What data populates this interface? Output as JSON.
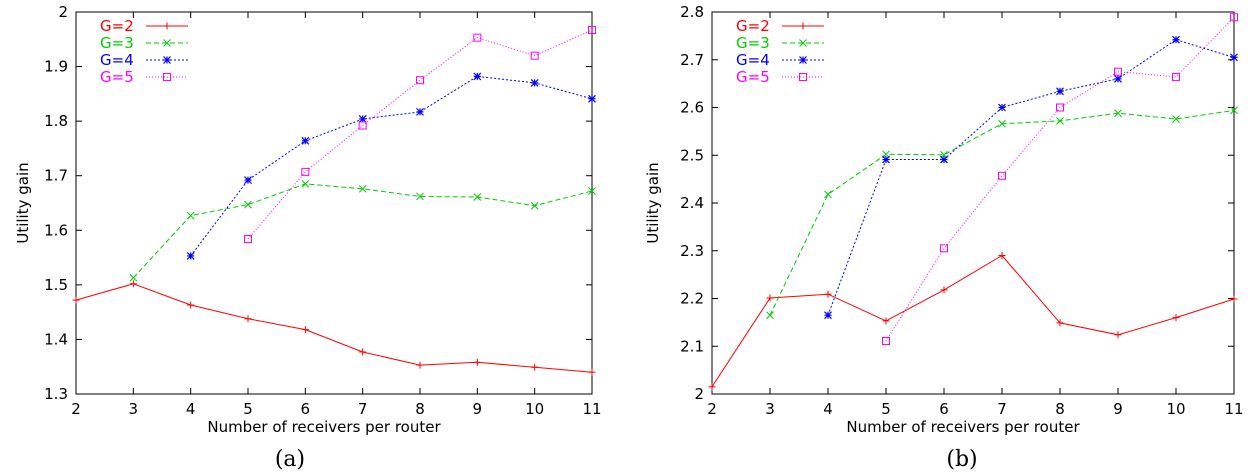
{
  "chart_data": [
    {
      "type": "line",
      "caption": "(a)",
      "xlabel": "Number of receivers per router",
      "ylabel": "Utility gain",
      "xlim": [
        2,
        11
      ],
      "ylim": [
        1.3,
        2.0
      ],
      "xticks": [
        2,
        3,
        4,
        5,
        6,
        7,
        8,
        9,
        10,
        11
      ],
      "yticks": [
        "1.3",
        "1.4",
        "1.5",
        "1.6",
        "1.7",
        "1.8",
        "1.9",
        "2"
      ],
      "grid": false,
      "legend_position": "top-left",
      "series": [
        {
          "name": "G=2",
          "color": "#ff0000",
          "marker": "plus",
          "x": [
            2,
            3,
            4,
            5,
            6,
            7,
            8,
            9,
            10,
            11
          ],
          "y": [
            1.472,
            1.502,
            1.463,
            1.438,
            1.418,
            1.377,
            1.353,
            1.358,
            1.349,
            1.34
          ]
        },
        {
          "name": "G=3",
          "color": "#00cc00",
          "marker": "cross",
          "x": [
            3,
            4,
            5,
            6,
            7,
            8,
            9,
            10,
            11
          ],
          "y": [
            1.513,
            1.627,
            1.647,
            1.685,
            1.676,
            1.662,
            1.661,
            1.645,
            1.672
          ]
        },
        {
          "name": "G=4",
          "color": "#0000ff",
          "marker": "star",
          "x": [
            4,
            5,
            6,
            7,
            8,
            9,
            10,
            11
          ],
          "y": [
            1.553,
            1.692,
            1.764,
            1.804,
            1.817,
            1.882,
            1.87,
            1.841
          ]
        },
        {
          "name": "G=5",
          "color": "#ff00ff",
          "marker": "square",
          "x": [
            5,
            6,
            7,
            8,
            9,
            10,
            11
          ],
          "y": [
            1.584,
            1.707,
            1.792,
            1.875,
            1.953,
            1.92,
            1.967
          ]
        }
      ]
    },
    {
      "type": "line",
      "caption": "(b)",
      "xlabel": "Number of receivers per router",
      "ylabel": "Utility gain",
      "xlim": [
        2,
        11
      ],
      "ylim": [
        2.0,
        2.8
      ],
      "xticks": [
        2,
        3,
        4,
        5,
        6,
        7,
        8,
        9,
        10,
        11
      ],
      "yticks": [
        "2",
        "2.1",
        "2.2",
        "2.3",
        "2.4",
        "2.5",
        "2.6",
        "2.7",
        "2.8"
      ],
      "grid": false,
      "legend_position": "top-left",
      "series": [
        {
          "name": "G=2",
          "color": "#ff0000",
          "marker": "plus",
          "x": [
            2,
            3,
            4,
            5,
            6,
            7,
            8,
            9,
            10,
            11
          ],
          "y": [
            2.015,
            2.201,
            2.209,
            2.153,
            2.218,
            2.29,
            2.149,
            2.124,
            2.16,
            2.199
          ]
        },
        {
          "name": "G=3",
          "color": "#00cc00",
          "marker": "cross",
          "x": [
            3,
            4,
            5,
            6,
            7,
            8,
            9,
            10,
            11
          ],
          "y": [
            2.165,
            2.418,
            2.502,
            2.501,
            2.566,
            2.572,
            2.588,
            2.576,
            2.594
          ]
        },
        {
          "name": "G=4",
          "color": "#0000ff",
          "marker": "star",
          "x": [
            4,
            5,
            6,
            7,
            8,
            9,
            10,
            11
          ],
          "y": [
            2.165,
            2.491,
            2.491,
            2.6,
            2.634,
            2.66,
            2.742,
            2.705
          ]
        },
        {
          "name": "G=5",
          "color": "#ff00ff",
          "marker": "square",
          "x": [
            5,
            6,
            7,
            8,
            9,
            10,
            11
          ],
          "y": [
            2.111,
            2.305,
            2.457,
            2.6,
            2.675,
            2.664,
            2.789
          ]
        }
      ]
    }
  ]
}
